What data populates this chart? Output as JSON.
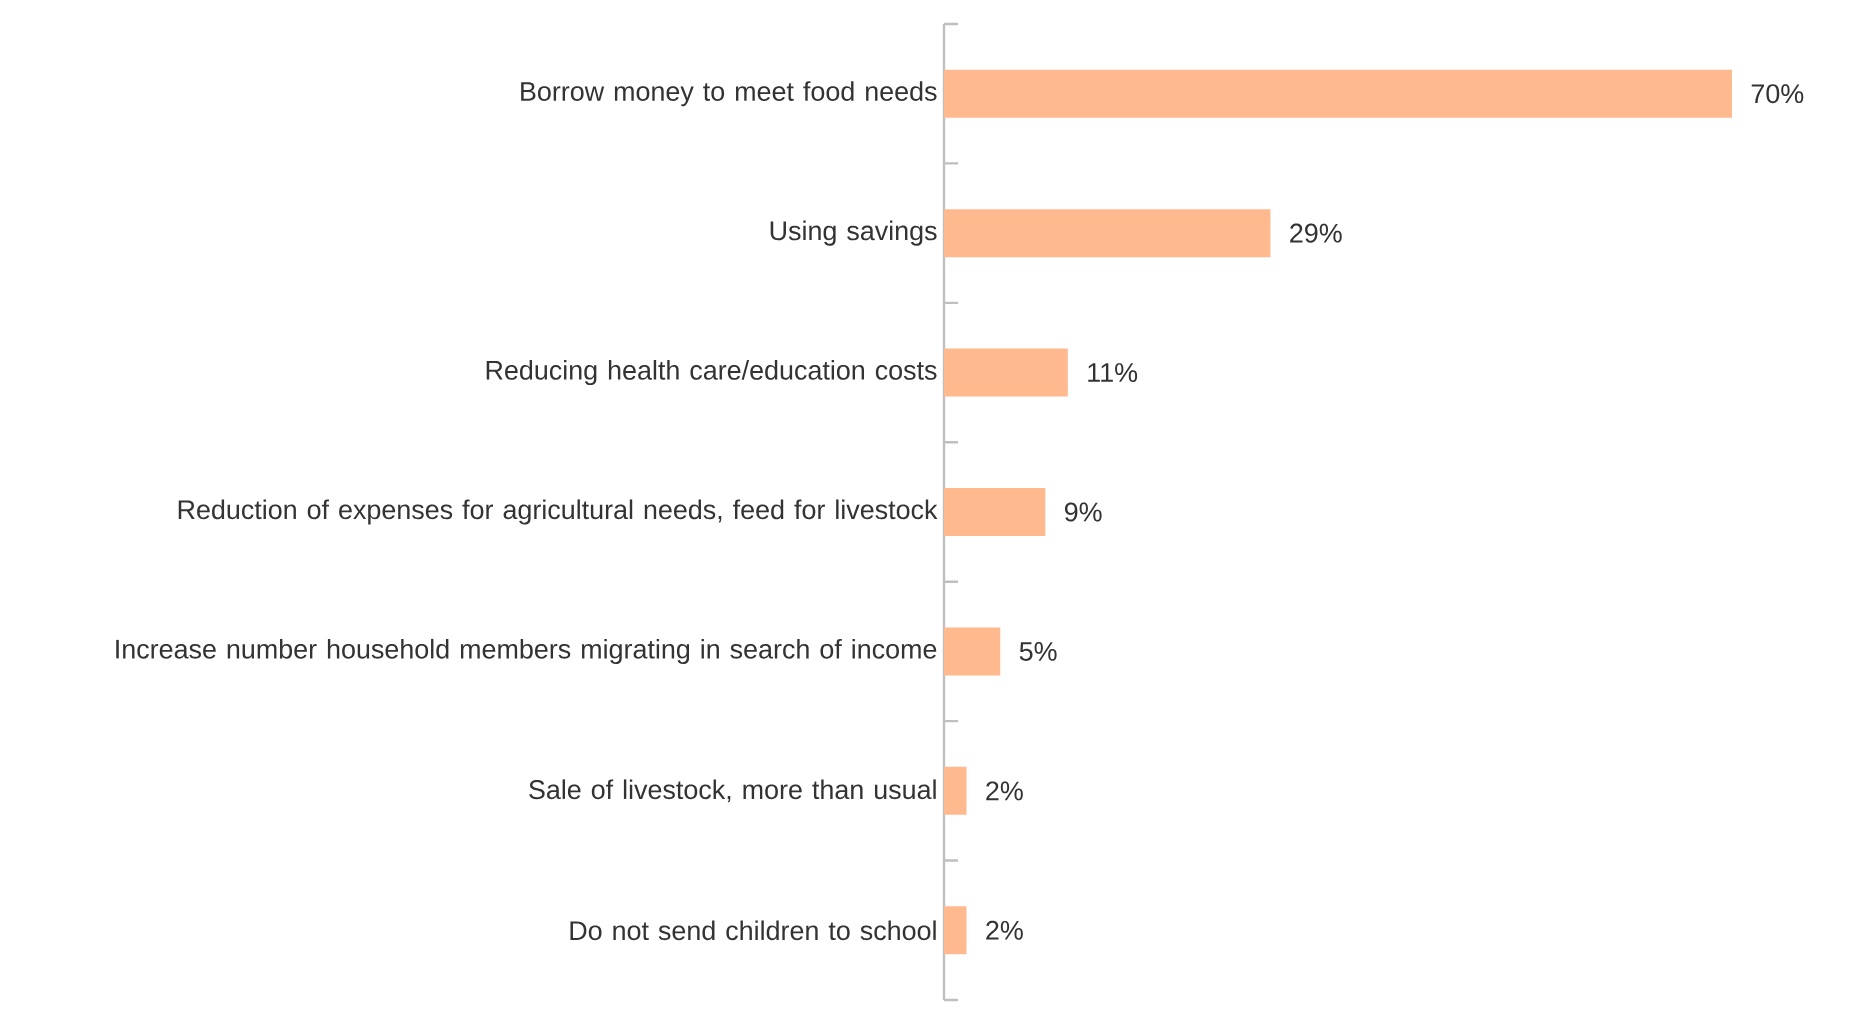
{
  "chart_data": {
    "type": "bar",
    "orientation": "horizontal",
    "color": "#ffb98f",
    "categories": [
      "Borrow money to meet food needs",
      "Using savings",
      "Reducing health care/education costs",
      "Reduction of expenses for agricultural needs, feed for livestock",
      "Increase number household members migrating in search of income",
      "Sale of livestock, more than usual",
      "Do not send children to school"
    ],
    "values": [
      70,
      29,
      11,
      9,
      5,
      2,
      2
    ],
    "value_labels": [
      "70%",
      "29%",
      "11%",
      "9%",
      "5%",
      "2%",
      "2%"
    ]
  }
}
